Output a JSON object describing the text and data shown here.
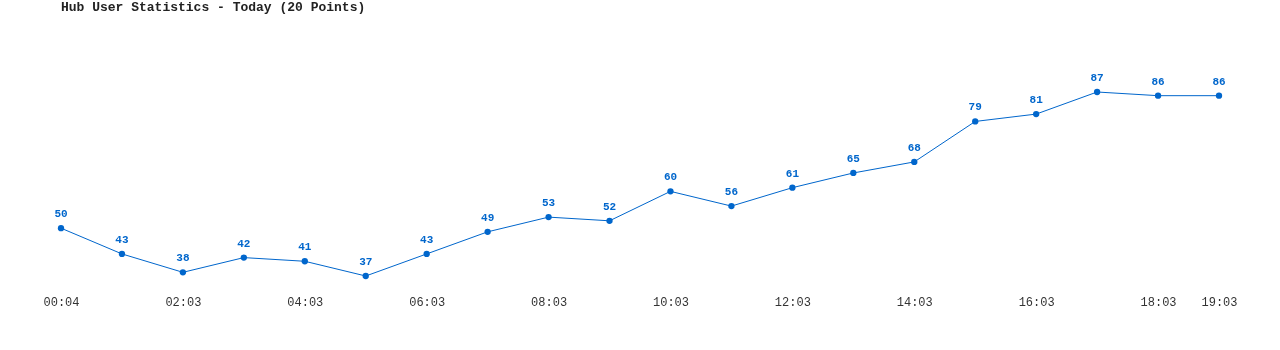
{
  "chart_data": {
    "type": "line",
    "title": "Hub User Statistics - Today (20 Points)",
    "categories": [
      "00:04",
      null,
      "02:03",
      null,
      "04:03",
      null,
      "06:03",
      null,
      "08:03",
      null,
      "10:03",
      null,
      "12:03",
      null,
      "14:03",
      null,
      "16:03",
      null,
      "18:03",
      "19:03"
    ],
    "series": [
      {
        "color": "#0066cc",
        "values": [
          50,
          43,
          38,
          42,
          41,
          37,
          43,
          49,
          53,
          52,
          60,
          56,
          61,
          65,
          68,
          79,
          81,
          87,
          86,
          86
        ]
      }
    ],
    "data_labels": true,
    "marker": "circle",
    "line_style": "solid",
    "tick_labels": "x"
  }
}
